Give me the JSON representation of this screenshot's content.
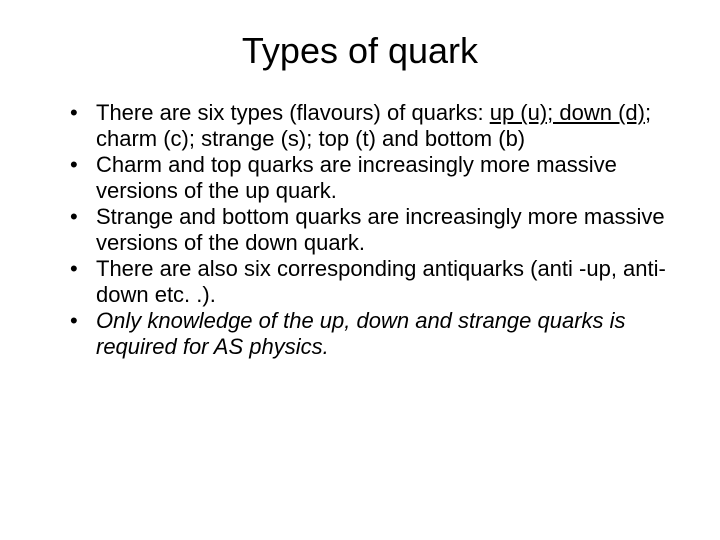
{
  "title": "Types of quark",
  "bullets": [
    {
      "segments": [
        {
          "text": "There are six types (flavours) of quarks: ",
          "style": ""
        },
        {
          "text": "up (u); down (d)",
          "style": "underline"
        },
        {
          "text": "; charm (c); strange (s); top (t) and bottom (b)",
          "style": ""
        }
      ]
    },
    {
      "segments": [
        {
          "text": "Charm and top quarks are increasingly more massive versions of the up quark.",
          "style": ""
        }
      ]
    },
    {
      "segments": [
        {
          "text": "Strange and bottom quarks are increasingly more massive versions of the down quark.",
          "style": ""
        }
      ]
    },
    {
      "segments": [
        {
          "text": "There are also six corresponding antiquarks (anti -up, anti-down etc. .).",
          "style": ""
        }
      ]
    },
    {
      "segments": [
        {
          "text": "Only knowledge of the up, down and strange quarks is required for AS physics.",
          "style": "italic"
        }
      ]
    }
  ],
  "colors": {
    "background": "#ffffff",
    "text": "#000000"
  },
  "typography": {
    "title_fontsize": 36,
    "body_fontsize": 22,
    "font_family": "Arial"
  }
}
